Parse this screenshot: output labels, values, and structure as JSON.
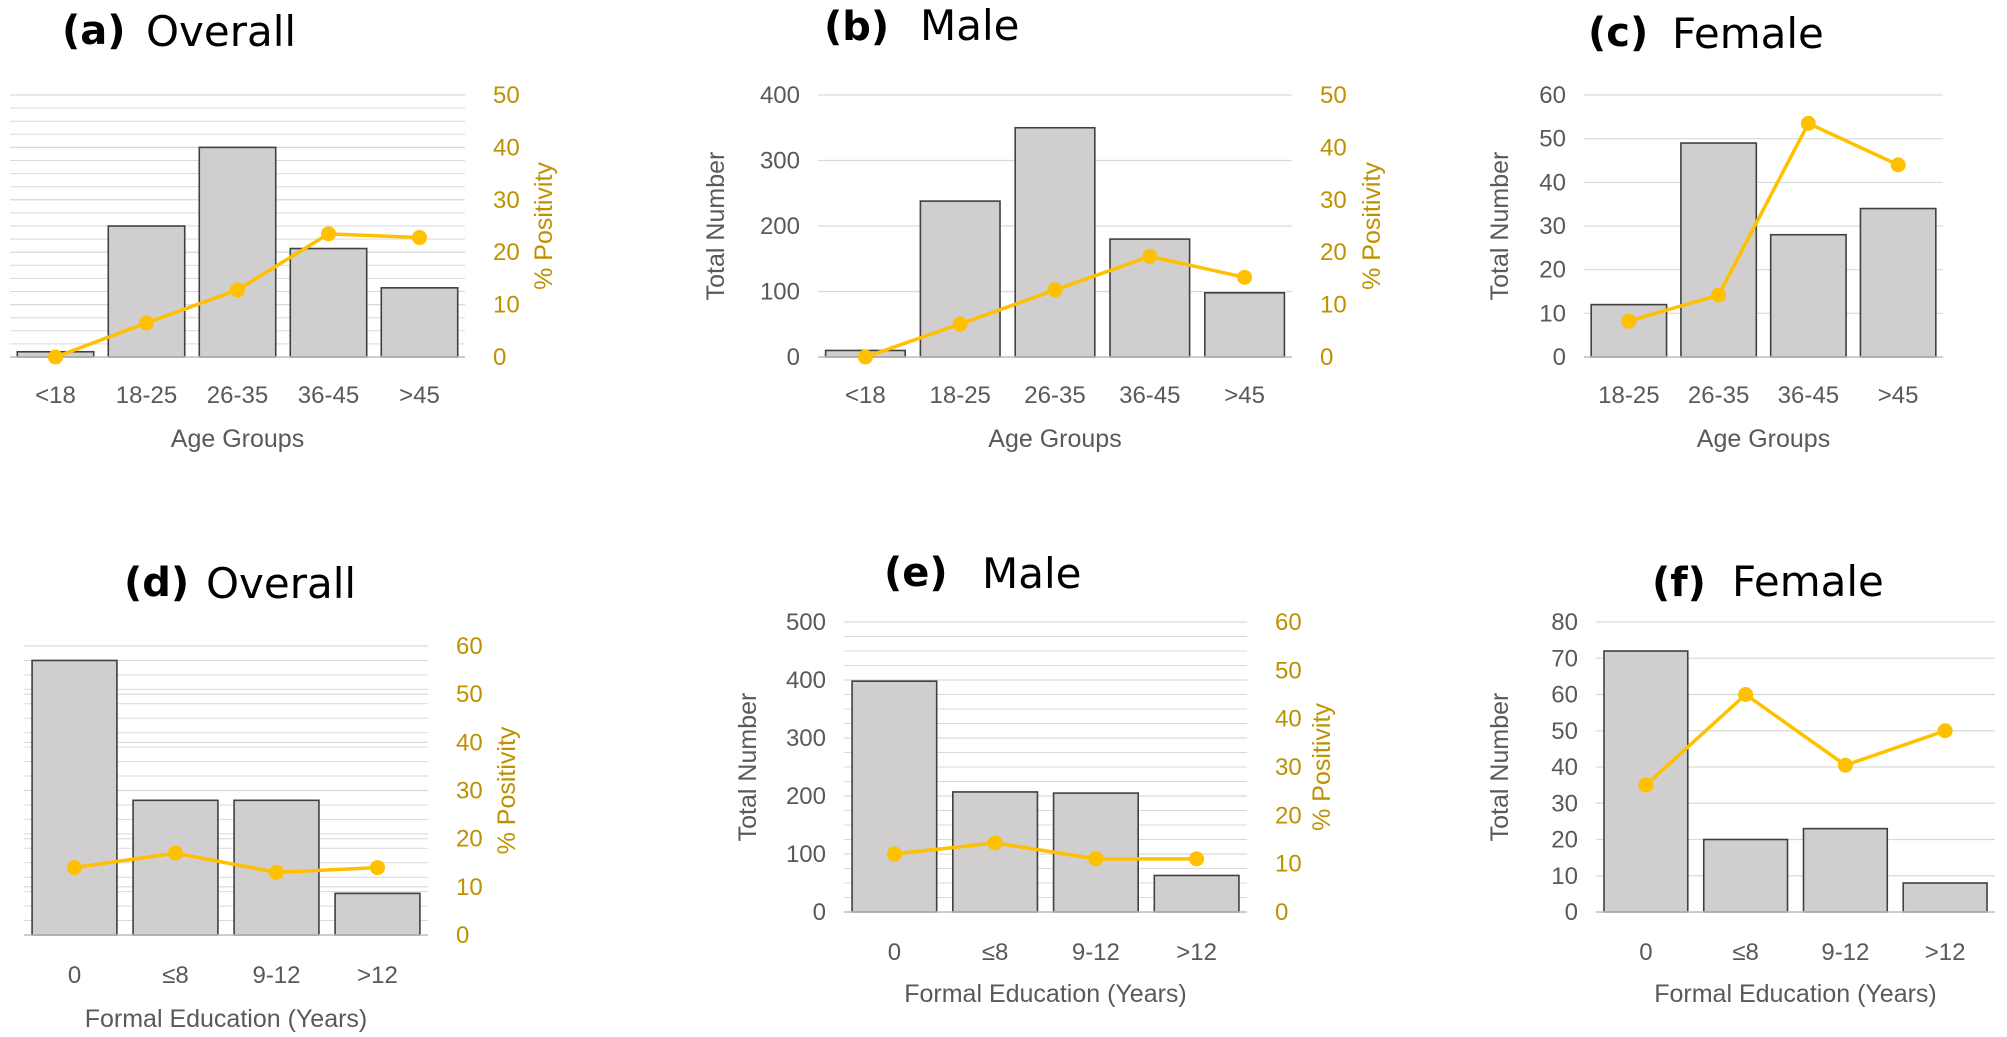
{
  "colors": {
    "bar_fill": "#d0cecf",
    "bar_stroke": "#404040",
    "line": "#ffc000",
    "right_axis_text": "#bf9000",
    "grid": "#d9d9d9"
  },
  "chart_data": [
    {
      "type": "bar",
      "panel_label": "(a)",
      "panel_title": "Overall",
      "categories": [
        "<18",
        "18-25",
        "26-35",
        "36-45",
        ">45"
      ],
      "series": [
        {
          "name": "",
          "kind": "bar",
          "axis": "left",
          "values": [
            10,
            250,
            400,
            207,
            132
          ]
        },
        {
          "name": "",
          "kind": "line",
          "axis": "right",
          "values": [
            0,
            6.5,
            12.8,
            23.5,
            22.8
          ]
        }
      ],
      "xlabel": "Age Groups",
      "ylabel": "",
      "y2label": "% Positivity",
      "ylim": [
        0,
        500
      ],
      "y2lim": [
        0,
        50
      ],
      "y2ticks": [
        0,
        10,
        20,
        30,
        40,
        50
      ],
      "show_left_ticks": false,
      "grid": true
    },
    {
      "type": "bar",
      "panel_label": "(b)",
      "panel_title": "Male",
      "categories": [
        "<18",
        "18-25",
        "26-35",
        "36-45",
        ">45"
      ],
      "series": [
        {
          "name": "",
          "kind": "bar",
          "axis": "left",
          "values": [
            10,
            238,
            350,
            180,
            98
          ]
        },
        {
          "name": "",
          "kind": "line",
          "axis": "right",
          "values": [
            0,
            6.3,
            12.8,
            19.2,
            15.2
          ]
        }
      ],
      "xlabel": "Age Groups",
      "ylabel": "Total Number",
      "y2label": "% Positivity",
      "ylim": [
        0,
        400
      ],
      "yticks": [
        0,
        100,
        200,
        300,
        400
      ],
      "y2lim": [
        0,
        50
      ],
      "y2ticks": [
        0,
        10,
        20,
        30,
        40,
        50
      ],
      "show_left_ticks": true,
      "grid": true
    },
    {
      "type": "bar",
      "panel_label": "(c)",
      "panel_title": "Female",
      "categories": [
        "18-25",
        "26-35",
        "36-45",
        ">45"
      ],
      "series": [
        {
          "name": "",
          "kind": "bar",
          "axis": "left",
          "values": [
            12,
            49,
            28,
            34
          ]
        },
        {
          "name": "",
          "kind": "line",
          "axis": "left",
          "values": [
            8.2,
            14.2,
            53.5,
            44
          ]
        }
      ],
      "xlabel": "Age Groups",
      "ylabel": "Total Number",
      "ylim": [
        0,
        60
      ],
      "yticks": [
        0,
        10,
        20,
        30,
        40,
        50,
        60
      ],
      "show_left_ticks": true,
      "grid": true
    },
    {
      "type": "bar",
      "panel_label": "(d)",
      "panel_title": "Overall",
      "categories": [
        "0",
        "≤8",
        "9-12",
        ">12"
      ],
      "series": [
        {
          "name": "",
          "kind": "bar",
          "axis": "left",
          "values": [
            475,
            233,
            233,
            72
          ]
        },
        {
          "name": "",
          "kind": "line",
          "axis": "right",
          "values": [
            14,
            17,
            13,
            14
          ]
        }
      ],
      "xlabel": "Formal Education (Years)",
      "ylabel": "",
      "y2label": "% Positivity",
      "ylim": [
        0,
        500
      ],
      "y2lim": [
        0,
        60
      ],
      "y2ticks": [
        0,
        10,
        20,
        30,
        40,
        50,
        60
      ],
      "show_left_ticks": false,
      "grid": true
    },
    {
      "type": "bar",
      "panel_label": "(e)",
      "panel_title": "Male",
      "categories": [
        "0",
        "≤8",
        "9-12",
        ">12"
      ],
      "series": [
        {
          "name": "",
          "kind": "bar",
          "axis": "left",
          "values": [
            398,
            207,
            205,
            63
          ]
        },
        {
          "name": "",
          "kind": "line",
          "axis": "right",
          "values": [
            12,
            14.3,
            11,
            11
          ]
        }
      ],
      "xlabel": "Formal Education (Years)",
      "ylabel": "Total Number",
      "y2label": "% Positivity",
      "ylim": [
        0,
        500
      ],
      "yticks": [
        0,
        100,
        200,
        300,
        400,
        500
      ],
      "y2lim": [
        0,
        60
      ],
      "y2ticks": [
        0,
        10,
        20,
        30,
        40,
        50,
        60
      ],
      "show_left_ticks": true,
      "grid": true
    },
    {
      "type": "bar",
      "panel_label": "(f)",
      "panel_title": "Female",
      "categories": [
        "0",
        "≤8",
        "9-12",
        ">12"
      ],
      "series": [
        {
          "name": "",
          "kind": "bar",
          "axis": "left",
          "values": [
            72,
            20,
            23,
            8
          ]
        },
        {
          "name": "",
          "kind": "line",
          "axis": "left",
          "values": [
            35,
            60,
            40.5,
            50
          ]
        }
      ],
      "xlabel": "Formal Education (Years)",
      "ylabel": "Total Number",
      "ylim": [
        0,
        80
      ],
      "yticks": [
        0,
        10,
        20,
        30,
        40,
        50,
        60,
        70,
        80
      ],
      "show_left_ticks": true,
      "grid": true
    }
  ]
}
